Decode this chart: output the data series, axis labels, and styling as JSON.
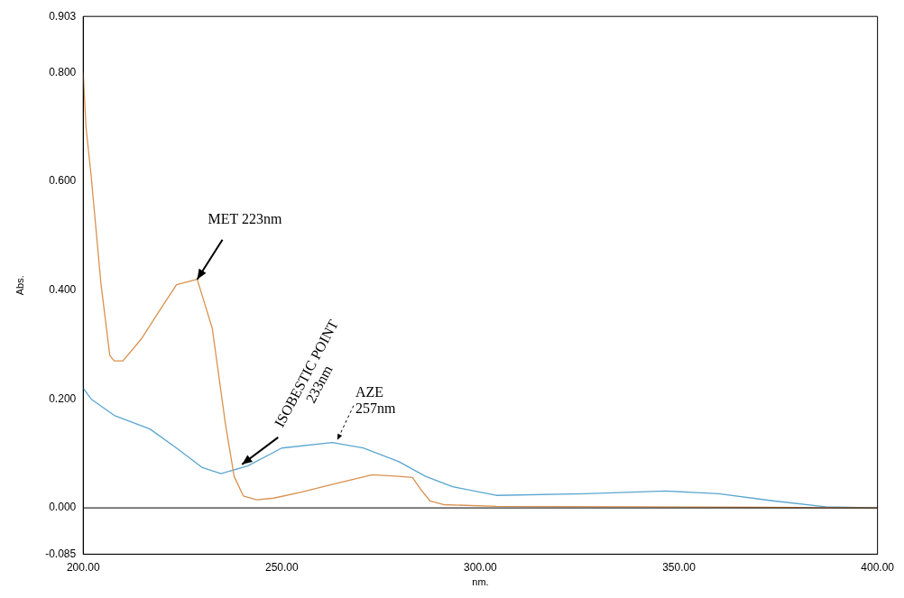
{
  "chart_data": {
    "type": "line",
    "xlabel": "nm.",
    "ylabel": "Abs.",
    "xlim": [
      200,
      400
    ],
    "xticks": [
      {
        "value": 200,
        "label": "200.00"
      },
      {
        "value": 250,
        "label": "250.00"
      },
      {
        "value": 300,
        "label": "300.00"
      },
      {
        "value": 350,
        "label": "350.00"
      },
      {
        "value": 400,
        "label": "400.00"
      }
    ],
    "ylim": [
      -0.085,
      0.903
    ],
    "yticks": [
      {
        "value": -0.085,
        "label": "-0.085"
      },
      {
        "value": 0,
        "label": "0.000"
      },
      {
        "value": 0.2,
        "label": "0.200"
      },
      {
        "value": 0.4,
        "label": "0.400"
      },
      {
        "value": 0.6,
        "label": "0.600"
      },
      {
        "value": 0.8,
        "label": "0.800"
      },
      {
        "value": 0.903,
        "label": "0.903"
      }
    ],
    "grid": false,
    "legend": false,
    "marker": "none",
    "line_style": "solid",
    "series": [
      {
        "color": "#d9914f",
        "x": [
          200,
          200.7,
          202,
          204.5,
          206.7,
          207.8,
          210,
          214.6,
          219,
          223.5,
          228.7,
          232.5,
          235.8,
          238,
          240.3,
          243.7,
          248,
          254.9,
          263.8,
          272.8,
          279.5,
          282.9,
          285,
          287.3,
          290.7,
          304,
          337.7,
          371,
          400
        ],
        "values": [
          0.8,
          0.7,
          0.61,
          0.41,
          0.28,
          0.27,
          0.27,
          0.31,
          0.36,
          0.41,
          0.42,
          0.33,
          0.155,
          0.058,
          0.022,
          0.015,
          0.018,
          0.029,
          0.045,
          0.061,
          0.058,
          0.056,
          0.034,
          0.013,
          0.006,
          0.003,
          0.002,
          0.001,
          0
        ]
      },
      {
        "color": "#5aa6d0",
        "x": [
          200,
          202,
          207.8,
          216.8,
          223.5,
          230,
          234.7,
          241.4,
          250,
          262.7,
          270.5,
          279.5,
          286.2,
          293,
          304,
          326.5,
          346.7,
          360,
          373.6,
          387,
          400
        ],
        "values": [
          0.22,
          0.2,
          0.17,
          0.145,
          0.11,
          0.074,
          0.063,
          0.077,
          0.11,
          0.12,
          0.11,
          0.085,
          0.058,
          0.039,
          0.023,
          0.026,
          0.031,
          0.026,
          0.013,
          0.002,
          0
        ]
      }
    ],
    "ref_lines": [
      {
        "axis": "y",
        "value": 0,
        "color": "#000000"
      }
    ],
    "annotations": [
      {
        "text": "MET 223nm",
        "x": 228.7,
        "y": 0.42
      },
      {
        "text": "ISOBESTIC POINT\n233nm",
        "x": 240,
        "y": 0.08
      },
      {
        "text": "AZE\n257nm",
        "x": 264,
        "y": 0.125
      }
    ]
  }
}
